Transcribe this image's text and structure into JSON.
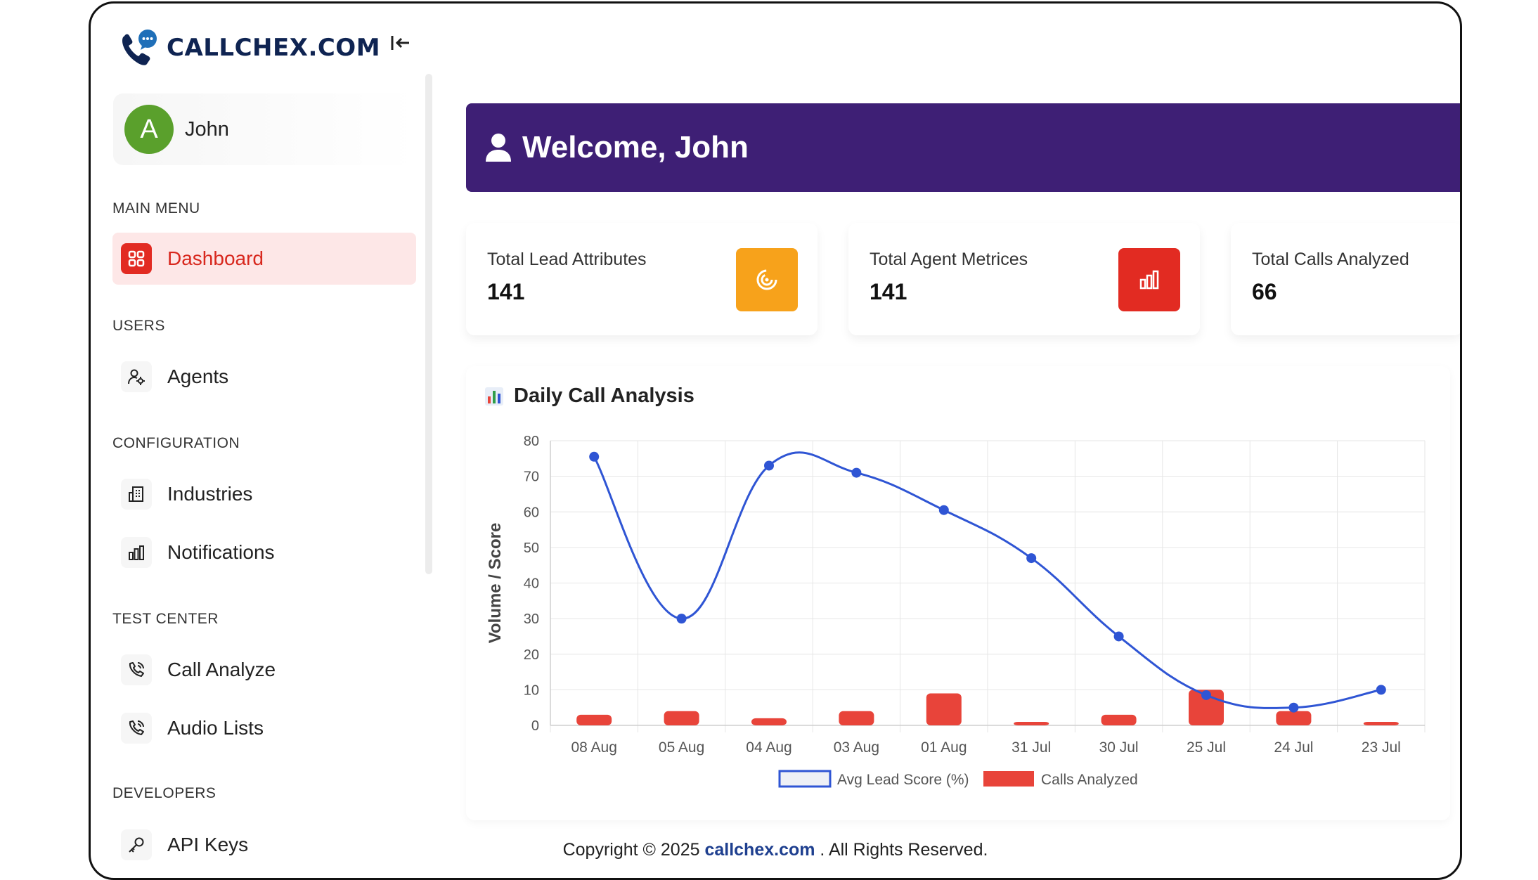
{
  "brand": {
    "name": "CALLCHEX.COM"
  },
  "user": {
    "name": "John",
    "initial": "A"
  },
  "menu": {
    "sections": [
      "MAIN MENU",
      "USERS",
      "CONFIGURATION",
      "TEST CENTER",
      "DEVELOPERS"
    ],
    "dashboard": "Dashboard",
    "agents": "Agents",
    "industries": "Industries",
    "notifications": "Notifications",
    "call_analyze": "Call Analyze",
    "audio_lists": "Audio Lists",
    "api_keys": "API Keys"
  },
  "banner": {
    "title": "Welcome, John"
  },
  "stats": [
    {
      "label": "Total Lead Attributes",
      "value": "141",
      "color": "#f7a21b"
    },
    {
      "label": "Total Agent Metrices",
      "value": "141",
      "color": "#e22b22"
    },
    {
      "label": "Total Calls Analyzed",
      "value": "66"
    }
  ],
  "chart_data": {
    "type": "line",
    "title": "Daily Call Analysis",
    "ylabel": "Volume / Score",
    "ylim": [
      0,
      80
    ],
    "yticks": [
      "0",
      "10",
      "20",
      "30",
      "40",
      "50",
      "60",
      "70",
      "80"
    ],
    "categories": [
      "08 Aug",
      "05 Aug",
      "04 Aug",
      "03 Aug",
      "01 Aug",
      "31 Jul",
      "30 Jul",
      "25 Jul",
      "24 Jul",
      "23 Jul"
    ],
    "series": [
      {
        "name": "Avg Lead Score (%)",
        "type": "line",
        "color": "#2f55d4",
        "values": [
          75.5,
          30,
          73,
          71,
          60.5,
          47,
          25,
          8.5,
          5,
          10
        ]
      },
      {
        "name": "Calls Analyzed",
        "type": "bar",
        "color": "#e8443a",
        "values": [
          3,
          4,
          2,
          4,
          9,
          1,
          3,
          10,
          4,
          1
        ]
      }
    ],
    "grid": true,
    "legend": "bottom"
  },
  "footer": {
    "prefix": "Copyright © 2025 ",
    "link": "callchex.com",
    "suffix": " . All Rights Reserved."
  }
}
